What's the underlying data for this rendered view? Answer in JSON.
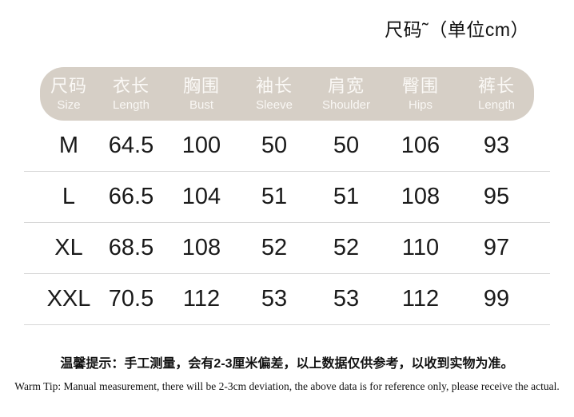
{
  "title": "尺码˜（单位cm）",
  "table": {
    "columns": [
      {
        "zh": "尺码",
        "en": "Size"
      },
      {
        "zh": "衣长",
        "en": "Length"
      },
      {
        "zh": "胸围",
        "en": "Bust"
      },
      {
        "zh": "袖长",
        "en": "Sleeve"
      },
      {
        "zh": "肩宽",
        "en": "Shoulder"
      },
      {
        "zh": "臀围",
        "en": "Hips"
      },
      {
        "zh": "裤长",
        "en": "Length"
      }
    ],
    "rows": [
      {
        "size": "M",
        "values": [
          "64.5",
          "100",
          "50",
          "50",
          "106",
          "93"
        ]
      },
      {
        "size": "L",
        "values": [
          "66.5",
          "104",
          "51",
          "51",
          "108",
          "95"
        ]
      },
      {
        "size": "XL",
        "values": [
          "68.5",
          "108",
          "52",
          "52",
          "110",
          "97"
        ]
      },
      {
        "size": "XXL",
        "values": [
          "70.5",
          "112",
          "53",
          "53",
          "112",
          "99"
        ]
      }
    ]
  },
  "notes": {
    "zh": "温馨提示：手工测量，会有2-3厘米偏差，以上数据仅供参考，以收到实物为准。",
    "en": "Warm Tip: Manual measurement, there will be 2-3cm deviation, the above data is for reference only, please receive the actual."
  },
  "colors": {
    "header_bg": "#d6cfc6",
    "header_fg": "#fbf9f6",
    "divider": "#d7d7d7"
  }
}
